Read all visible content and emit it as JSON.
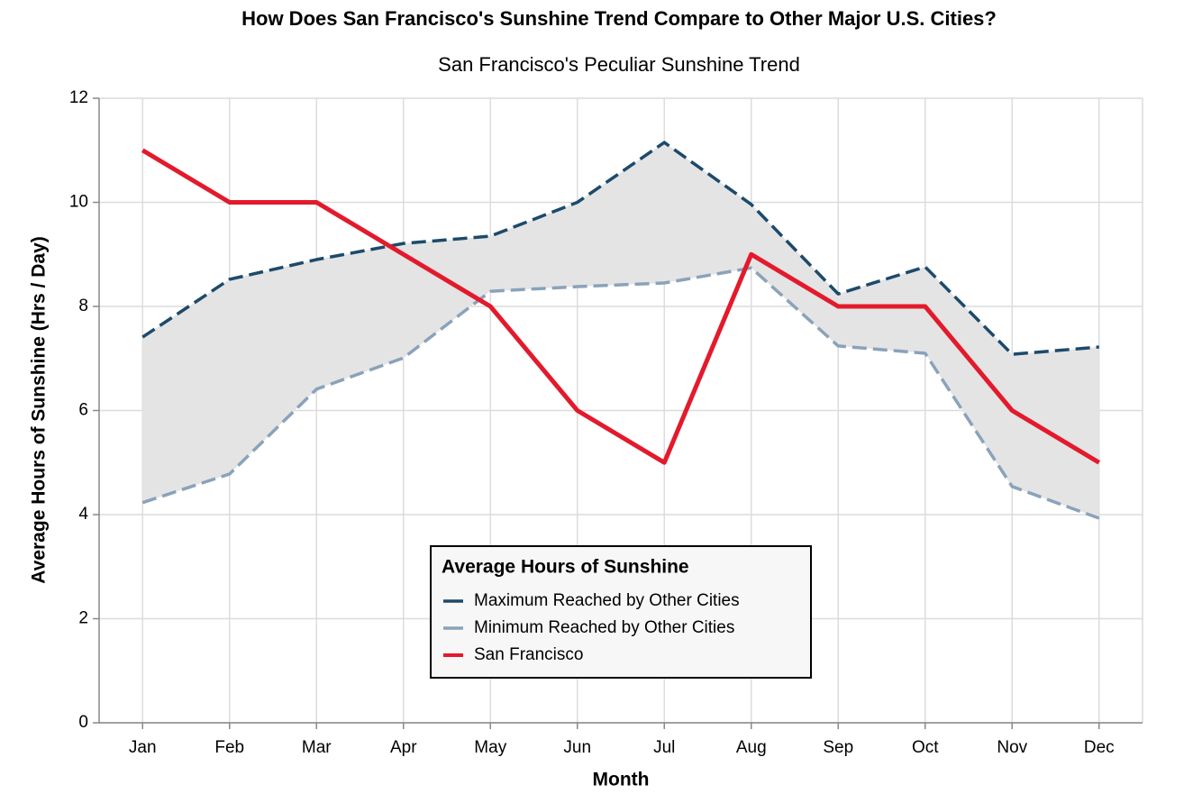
{
  "chart_data": {
    "type": "line",
    "title": "How Does San Francisco's Sunshine Trend Compare to Other Major U.S. Cities?",
    "subtitle": "San Francisco's Peculiar Sunshine Trend",
    "x_label": "Month",
    "y_label": "Average Hours of Sunshine (Hrs / Day)",
    "categories": [
      "Jan",
      "Feb",
      "Mar",
      "Apr",
      "May",
      "Jun",
      "Jul",
      "Aug",
      "Sep",
      "Oct",
      "Nov",
      "Dec"
    ],
    "series": [
      {
        "name": "Maximum Reached by Other Cities",
        "color": "#1c4a6b",
        "dash": true,
        "values": [
          7.41,
          8.52,
          8.9,
          9.21,
          9.35,
          10.0,
          11.15,
          9.96,
          8.24,
          8.76,
          7.08,
          7.22
        ]
      },
      {
        "name": "Minimum Reached by Other Cities",
        "color": "#8aa2ba",
        "dash": true,
        "values": [
          4.23,
          4.78,
          6.41,
          7.01,
          8.29,
          8.38,
          8.45,
          8.74,
          7.24,
          7.1,
          4.54,
          3.93
        ]
      },
      {
        "name": "San Francisco",
        "color": "#e31a2c",
        "dash": false,
        "values": [
          11,
          10,
          10,
          9,
          8,
          6,
          5,
          9,
          8,
          8,
          6,
          5
        ]
      }
    ],
    "band_color": "#e4e4e4",
    "legend_title": "Average Hours of Sunshine",
    "ylim": [
      0,
      12
    ],
    "yticks": [
      0,
      2,
      4,
      6,
      8,
      10,
      12
    ],
    "grid": true
  }
}
